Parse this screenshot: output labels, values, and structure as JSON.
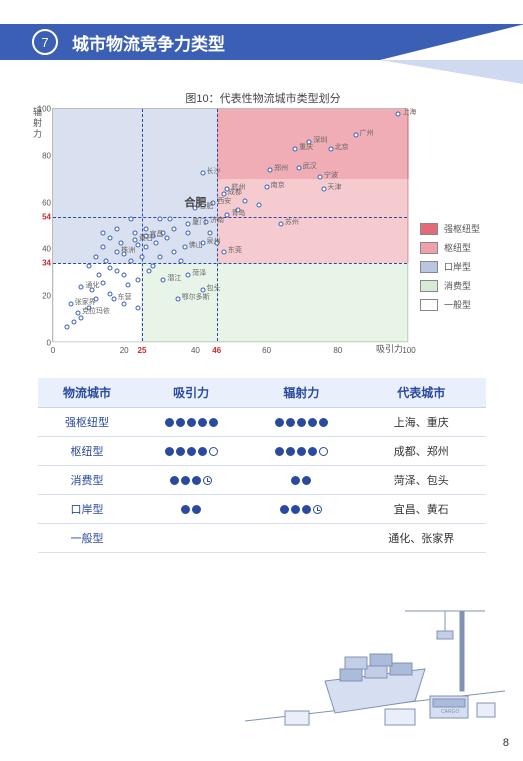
{
  "header": {
    "number": "7",
    "title": "城市物流竞争力类型"
  },
  "chart": {
    "title": "图10：代表性物流城市类型划分",
    "x_axis_label": "吸引力",
    "y_axis_label": "辐射力",
    "xlim": [
      0,
      100
    ],
    "ylim": [
      0,
      100
    ],
    "xticks": [
      0,
      20,
      40,
      60,
      80,
      100
    ],
    "yticks": [
      0,
      20,
      40,
      60,
      80,
      100
    ],
    "ref_x": [
      25,
      46
    ],
    "ref_y": [
      34,
      54
    ],
    "ref_x_highlight": [
      25,
      46
    ],
    "ref_y_highlight": [
      34,
      54
    ],
    "regions": [
      {
        "name": "强枢纽型",
        "color": "#e46a7a",
        "xr": [
          46,
          100
        ],
        "yr": [
          70,
          100
        ]
      },
      {
        "name": "枢纽型",
        "color": "#efa0aa",
        "xr": [
          46,
          100
        ],
        "yr": [
          34,
          70
        ]
      },
      {
        "name": "口岸型",
        "color": "#b9c6e2",
        "xr": [
          0,
          46
        ],
        "yr": [
          34,
          100
        ]
      },
      {
        "name": "消费型",
        "color": "#d6ebd6",
        "xr": [
          25,
          100
        ],
        "yr": [
          0,
          34
        ]
      },
      {
        "name": "一般型",
        "color": "#ffffff",
        "xr": [
          0,
          25
        ],
        "yr": [
          0,
          34
        ]
      }
    ],
    "legend": [
      {
        "label": "强枢纽型",
        "color": "#e46a7a"
      },
      {
        "label": "枢纽型",
        "color": "#efa0aa"
      },
      {
        "label": "口岸型",
        "color": "#b9c6e2"
      },
      {
        "label": "消费型",
        "color": "#d6ebd6"
      },
      {
        "label": "一般型",
        "color": "#ffffff"
      }
    ],
    "labeled_points": [
      {
        "label": "上海",
        "x": 97,
        "y": 97
      },
      {
        "label": "广州",
        "x": 85,
        "y": 88
      },
      {
        "label": "深圳",
        "x": 72,
        "y": 85
      },
      {
        "label": "北京",
        "x": 78,
        "y": 82
      },
      {
        "label": "重庆",
        "x": 68,
        "y": 82
      },
      {
        "label": "武汉",
        "x": 69,
        "y": 74
      },
      {
        "label": "宁波",
        "x": 75,
        "y": 70
      },
      {
        "label": "天津",
        "x": 76,
        "y": 65
      },
      {
        "label": "郑州",
        "x": 61,
        "y": 73
      },
      {
        "label": "南京",
        "x": 60,
        "y": 66
      },
      {
        "label": "苏州",
        "x": 64,
        "y": 50
      },
      {
        "label": "成都",
        "x": 48,
        "y": 63
      },
      {
        "label": "杭州",
        "x": 49,
        "y": 65
      },
      {
        "label": "长沙",
        "x": 42,
        "y": 72
      },
      {
        "label": "西安",
        "x": 45,
        "y": 59
      },
      {
        "label": "合肥",
        "x": 40,
        "y": 57
      },
      {
        "label": "青岛",
        "x": 49,
        "y": 54
      },
      {
        "label": "济南",
        "x": 43,
        "y": 51
      },
      {
        "label": "厦门",
        "x": 38,
        "y": 50
      },
      {
        "label": "泉州",
        "x": 42,
        "y": 42
      },
      {
        "label": "东莞",
        "x": 48,
        "y": 38
      },
      {
        "label": "佛山",
        "x": 37,
        "y": 40
      },
      {
        "label": "菏泽",
        "x": 38,
        "y": 28
      },
      {
        "label": "包头",
        "x": 42,
        "y": 22
      },
      {
        "label": "鄂尔多斯",
        "x": 35,
        "y": 18
      },
      {
        "label": "宜昌",
        "x": 26,
        "y": 45
      },
      {
        "label": "黄石",
        "x": 23,
        "y": 43
      },
      {
        "label": "株洲",
        "x": 18,
        "y": 38
      },
      {
        "label": "潜江",
        "x": 31,
        "y": 26
      },
      {
        "label": "通化",
        "x": 8,
        "y": 23
      },
      {
        "label": "张家界",
        "x": 5,
        "y": 16
      },
      {
        "label": "东营",
        "x": 17,
        "y": 18
      },
      {
        "label": "克拉玛依",
        "x": 7,
        "y": 12
      }
    ],
    "noise_points": [
      {
        "x": 16,
        "y": 44
      },
      {
        "x": 14,
        "y": 40
      },
      {
        "x": 12,
        "y": 36
      },
      {
        "x": 10,
        "y": 32
      },
      {
        "x": 18,
        "y": 30
      },
      {
        "x": 22,
        "y": 34
      },
      {
        "x": 20,
        "y": 28
      },
      {
        "x": 24,
        "y": 26
      },
      {
        "x": 28,
        "y": 32
      },
      {
        "x": 30,
        "y": 36
      },
      {
        "x": 26,
        "y": 40
      },
      {
        "x": 32,
        "y": 44
      },
      {
        "x": 34,
        "y": 48
      },
      {
        "x": 30,
        "y": 52
      },
      {
        "x": 26,
        "y": 48
      },
      {
        "x": 22,
        "y": 52
      },
      {
        "x": 18,
        "y": 48
      },
      {
        "x": 14,
        "y": 46
      },
      {
        "x": 14,
        "y": 25
      },
      {
        "x": 16,
        "y": 20
      },
      {
        "x": 20,
        "y": 16
      },
      {
        "x": 24,
        "y": 14
      },
      {
        "x": 12,
        "y": 18
      },
      {
        "x": 10,
        "y": 14
      },
      {
        "x": 8,
        "y": 10
      },
      {
        "x": 6,
        "y": 8
      },
      {
        "x": 4,
        "y": 6
      },
      {
        "x": 34,
        "y": 38
      },
      {
        "x": 36,
        "y": 34
      },
      {
        "x": 38,
        "y": 46
      },
      {
        "x": 44,
        "y": 46
      },
      {
        "x": 46,
        "y": 42
      },
      {
        "x": 52,
        "y": 56
      },
      {
        "x": 54,
        "y": 60
      },
      {
        "x": 58,
        "y": 58
      },
      {
        "x": 29,
        "y": 42
      },
      {
        "x": 31,
        "y": 46
      },
      {
        "x": 25,
        "y": 36
      },
      {
        "x": 27,
        "y": 30
      },
      {
        "x": 21,
        "y": 24
      },
      {
        "x": 15,
        "y": 34
      },
      {
        "x": 13,
        "y": 28
      },
      {
        "x": 19,
        "y": 42
      },
      {
        "x": 23,
        "y": 46
      },
      {
        "x": 33,
        "y": 52
      },
      {
        "x": 20,
        "y": 37
      },
      {
        "x": 24,
        "y": 41
      },
      {
        "x": 28,
        "y": 45
      },
      {
        "x": 16,
        "y": 31
      },
      {
        "x": 11,
        "y": 22
      }
    ]
  },
  "table": {
    "headers": [
      "物流城市",
      "吸引力",
      "辐射力",
      "代表城市"
    ],
    "rows": [
      {
        "type": "强枢纽型",
        "attract": "FFFFF",
        "radiate": "FFFFF",
        "cities": "上海、重庆"
      },
      {
        "type": "枢纽型",
        "attract": "FFFFE",
        "radiate": "FFFFE",
        "cities": "成都、郑州"
      },
      {
        "type": "消费型",
        "attract": "FFFC",
        "radiate": "FF",
        "cities": "菏泽、包头"
      },
      {
        "type": "口岸型",
        "attract": "FF",
        "radiate": "FFFC",
        "cities": "宜昌、黄石"
      },
      {
        "type": "一般型",
        "attract": "",
        "radiate": "",
        "cities": "通化、张家界"
      }
    ],
    "dot_legend": {
      "F": "full",
      "E": "empty",
      "C": "clock"
    }
  },
  "page_number": "8",
  "colors": {
    "brand": "#3a5fb5",
    "brand_light": "#cfd9ef",
    "ref_line": "#2a4aa0",
    "highlight": "#cc2a2a"
  }
}
